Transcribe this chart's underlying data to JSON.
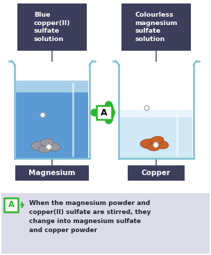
{
  "title_bg_color": "#3d3d5c",
  "title_text_color": "#ffffff",
  "left_title": "Blue\ncopper(II)\nsulfate\nsolution",
  "right_title": "Colourless\nmagnesium\nsulfate\nsolution",
  "left_label": "Magnesium",
  "right_label": "Copper",
  "arrow_label": "A",
  "arrow_color": "#2db52d",
  "beaker_outline_color": "#7bbfd4",
  "left_liquid_main": "#5b9bd5",
  "left_liquid_top": "#a8cfe8",
  "right_liquid_main": "#d0e8f5",
  "right_liquid_top": "#e8f4fb",
  "magnesium_color": "#9898a0",
  "magnesium_edge": "#707078",
  "copper_color": "#c8622a",
  "copper_edge": "#a04820",
  "dot_color": "#ffffff",
  "dot_edge": "#aaaaaa",
  "line_color": "#555566",
  "note_bg": "#dcdce8",
  "note_label_color": "#2db52d",
  "note_text": "When the magnesium powder and\ncopper(II) sulfate are stirred, they\nchange into magnesium sulfate\nand copper powder"
}
